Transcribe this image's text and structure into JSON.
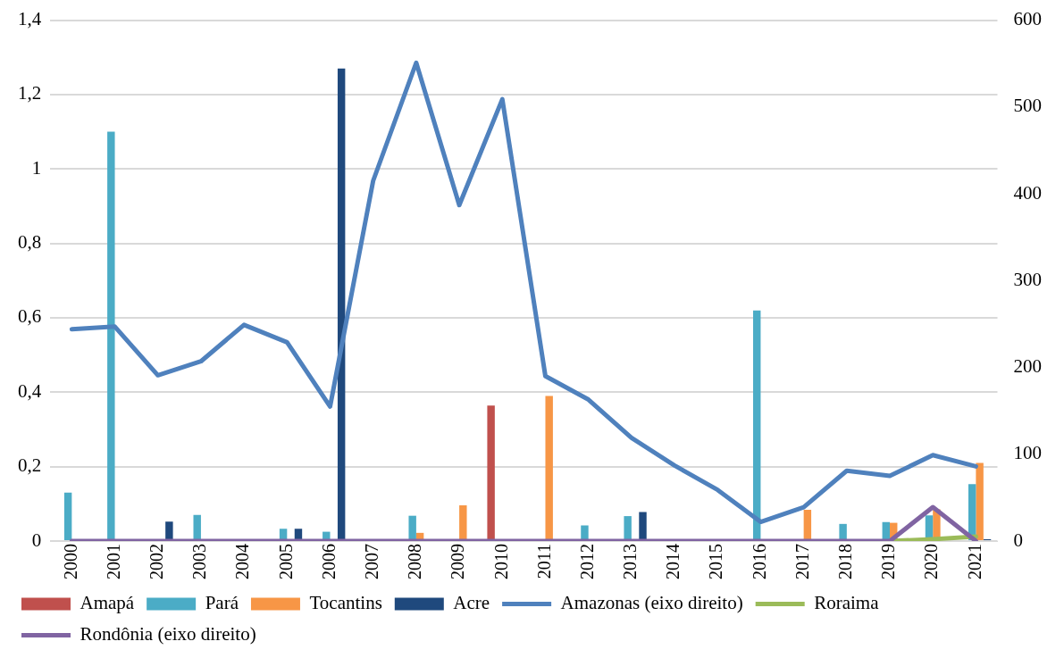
{
  "chart_data": {
    "type": "bar",
    "categories": [
      "2000",
      "2001",
      "2002",
      "2003",
      "2004",
      "2005",
      "2006",
      "2007",
      "2008",
      "2009",
      "2010",
      "2011",
      "2012",
      "2013",
      "2014",
      "2015",
      "2016",
      "2017",
      "2018",
      "2019",
      "2020",
      "2021"
    ],
    "series": [
      {
        "name": "Amapá",
        "color": "#c0504d",
        "values": [
          0,
          0,
          0,
          0,
          0,
          0,
          0,
          0,
          0,
          0,
          0.364,
          0,
          0,
          0,
          0,
          0,
          0,
          0,
          0,
          0,
          0,
          0
        ]
      },
      {
        "name": "Pará",
        "color": "#4bacc6",
        "values": [
          0.13,
          1.1,
          0,
          0.07,
          0,
          0.033,
          0.025,
          0,
          0.068,
          0,
          null,
          0,
          0.042,
          0.067,
          0,
          0,
          0.62,
          0,
          0.046,
          0.051,
          0.069,
          0.153
        ]
      },
      {
        "name": "Tocantins",
        "color": "#f79646",
        "values": [
          0,
          0,
          0,
          0,
          0,
          0,
          0,
          0,
          0.022,
          0.096,
          0,
          0.39,
          0,
          0,
          0,
          0,
          0,
          0.084,
          0,
          0.049,
          0.085,
          0.21
        ]
      },
      {
        "name": "Acre",
        "color": "#1f497d",
        "values": [
          0,
          0,
          0.052,
          0,
          0,
          0.033,
          1.27,
          0,
          0,
          0,
          0,
          0,
          0,
          0.078,
          0,
          0,
          0,
          0,
          0,
          0,
          0,
          0.005
        ]
      },
      {
        "name": "Amazonas (eixo direito)",
        "type": "line",
        "axis": "y2",
        "color": "#4f81bd",
        "values": [
          244,
          247,
          191,
          207,
          249,
          229,
          155,
          415,
          551,
          387,
          509,
          190,
          163,
          119,
          87,
          59,
          22,
          39,
          81,
          75,
          99,
          86
        ]
      },
      {
        "name": "Roraima",
        "type": "line",
        "color": "#9bbb59",
        "values": [
          null,
          null,
          null,
          null,
          null,
          null,
          null,
          null,
          null,
          null,
          null,
          null,
          null,
          null,
          null,
          null,
          null,
          null,
          null,
          0,
          0.005,
          0.012
        ]
      },
      {
        "name": "Rondônia (eixo direito)",
        "type": "line",
        "axis": "y2",
        "color": "#8064a2",
        "values": [
          0,
          0,
          0,
          0,
          0,
          0,
          0,
          0,
          0,
          0,
          0,
          0,
          0,
          0,
          0,
          0,
          0,
          0,
          0,
          0,
          39,
          0
        ]
      }
    ],
    "ylim": [
      0,
      1.4
    ],
    "yticks": [
      {
        "value": 0,
        "label": "0"
      },
      {
        "value": 0.2,
        "label": "0,2"
      },
      {
        "value": 0.4,
        "label": "0,4"
      },
      {
        "value": 0.6,
        "label": "0,6"
      },
      {
        "value": 0.8,
        "label": "0,8"
      },
      {
        "value": 1,
        "label": "1"
      },
      {
        "value": 1.2,
        "label": "1,2"
      },
      {
        "value": 1.4,
        "label": "1,4"
      }
    ],
    "y2lim": [
      0,
      600
    ],
    "y2ticks": [
      0,
      100,
      200,
      300,
      400,
      500,
      600
    ],
    "grid": "y",
    "legend": "bottom",
    "marker": "none",
    "line_style": "solid"
  }
}
